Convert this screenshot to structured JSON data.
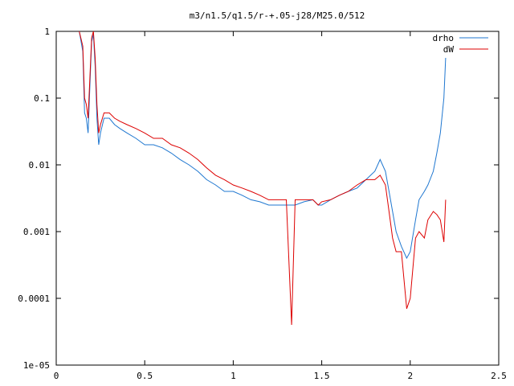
{
  "chart_data": {
    "type": "line",
    "title": "m3/n1.5/q1.5/r-+.05-j28/M25.0/512",
    "xlabel": "",
    "ylabel": "",
    "xlim": [
      0,
      2.5
    ],
    "ylim": [
      1e-05,
      1
    ],
    "yscale": "log",
    "grid": false,
    "legend_position": "top-right",
    "x_ticks": [
      "0",
      "0.5",
      "1",
      "1.5",
      "2",
      "2.5"
    ],
    "y_ticks": [
      "1",
      "0.1",
      "0.01",
      "0.001",
      "0.0001",
      "1e-05"
    ],
    "series": [
      {
        "name": "drho",
        "color": "#1f77d0",
        "x": [
          0.13,
          0.15,
          0.16,
          0.17,
          0.18,
          0.19,
          0.2,
          0.21,
          0.22,
          0.23,
          0.24,
          0.25,
          0.27,
          0.3,
          0.33,
          0.36,
          0.4,
          0.45,
          0.5,
          0.55,
          0.6,
          0.65,
          0.7,
          0.75,
          0.8,
          0.85,
          0.9,
          0.95,
          1.0,
          1.05,
          1.1,
          1.15,
          1.2,
          1.25,
          1.3,
          1.33,
          1.35,
          1.4,
          1.45,
          1.48,
          1.5,
          1.55,
          1.6,
          1.65,
          1.7,
          1.75,
          1.8,
          1.83,
          1.86,
          1.88,
          1.9,
          1.92,
          1.95,
          1.98,
          2.0,
          2.03,
          2.05,
          2.08,
          2.1,
          2.13,
          2.15,
          2.17,
          2.19,
          2.2
        ],
        "values": [
          1.0,
          0.5,
          0.06,
          0.05,
          0.03,
          0.15,
          0.7,
          0.9,
          0.3,
          0.05,
          0.02,
          0.03,
          0.05,
          0.05,
          0.04,
          0.035,
          0.03,
          0.025,
          0.02,
          0.02,
          0.018,
          0.015,
          0.012,
          0.01,
          0.008,
          0.006,
          0.005,
          0.004,
          0.004,
          0.0035,
          0.003,
          0.0028,
          0.0025,
          0.0025,
          0.0025,
          0.0025,
          0.0025,
          0.0028,
          0.003,
          0.0025,
          0.0025,
          0.003,
          0.0035,
          0.004,
          0.0045,
          0.006,
          0.008,
          0.012,
          0.008,
          0.004,
          0.002,
          0.001,
          0.0006,
          0.0004,
          0.0005,
          0.0015,
          0.003,
          0.004,
          0.005,
          0.008,
          0.015,
          0.03,
          0.1,
          0.4
        ]
      },
      {
        "name": "dW",
        "color": "#dd0000",
        "x": [
          0.13,
          0.15,
          0.16,
          0.17,
          0.18,
          0.19,
          0.2,
          0.21,
          0.22,
          0.23,
          0.24,
          0.25,
          0.27,
          0.3,
          0.33,
          0.36,
          0.4,
          0.45,
          0.5,
          0.55,
          0.6,
          0.65,
          0.7,
          0.75,
          0.8,
          0.85,
          0.9,
          0.95,
          1.0,
          1.05,
          1.1,
          1.15,
          1.2,
          1.25,
          1.3,
          1.33,
          1.35,
          1.4,
          1.45,
          1.48,
          1.5,
          1.55,
          1.6,
          1.65,
          1.7,
          1.75,
          1.8,
          1.83,
          1.86,
          1.88,
          1.9,
          1.92,
          1.95,
          1.98,
          2.0,
          2.03,
          2.05,
          2.08,
          2.1,
          2.13,
          2.15,
          2.17,
          2.19,
          2.2
        ],
        "values": [
          1.0,
          0.6,
          0.1,
          0.08,
          0.05,
          0.2,
          0.8,
          1.0,
          0.4,
          0.08,
          0.03,
          0.04,
          0.06,
          0.06,
          0.05,
          0.045,
          0.04,
          0.035,
          0.03,
          0.025,
          0.025,
          0.02,
          0.018,
          0.015,
          0.012,
          0.009,
          0.007,
          0.006,
          0.005,
          0.0045,
          0.004,
          0.0035,
          0.003,
          0.003,
          0.003,
          4e-05,
          0.003,
          0.003,
          0.003,
          0.0025,
          0.0028,
          0.003,
          0.0035,
          0.004,
          0.005,
          0.006,
          0.006,
          0.007,
          0.005,
          0.002,
          0.0008,
          0.0005,
          0.0005,
          7e-05,
          0.0001,
          0.0008,
          0.001,
          0.0008,
          0.0015,
          0.002,
          0.0018,
          0.0015,
          0.0007,
          0.003
        ]
      }
    ]
  }
}
